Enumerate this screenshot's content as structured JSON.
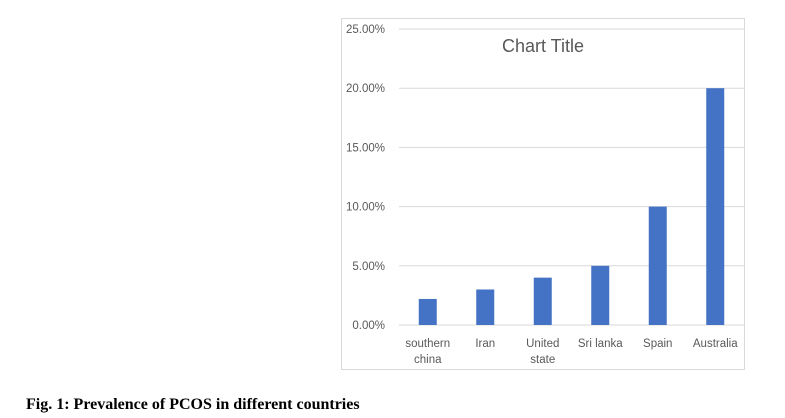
{
  "chart_data": {
    "type": "bar",
    "title": "Chart Title",
    "categories": [
      "southern china",
      "Iran",
      "United state",
      "Sri lanka",
      "Spain",
      "Australia"
    ],
    "category_lines": [
      [
        "southern",
        "china"
      ],
      [
        "Iran"
      ],
      [
        "United",
        "state"
      ],
      [
        "Sri lanka"
      ],
      [
        "Spain"
      ],
      [
        "Australia"
      ]
    ],
    "values": [
      2.2,
      3.0,
      4.0,
      5.0,
      10.0,
      20.0
    ],
    "value_unit": "percent",
    "ylim": [
      0,
      25
    ],
    "yticks": [
      0,
      5,
      10,
      15,
      20,
      25
    ],
    "ytick_labels": [
      "0.00%",
      "5.00%",
      "10.00%",
      "15.00%",
      "20.00%",
      "25.00%"
    ],
    "xlabel": "",
    "ylabel": "",
    "grid": true,
    "bar_color": "#4472c4",
    "grid_color": "#d9d9d9"
  },
  "caption": "Fig. 1: Prevalence of PCOS in different countries"
}
